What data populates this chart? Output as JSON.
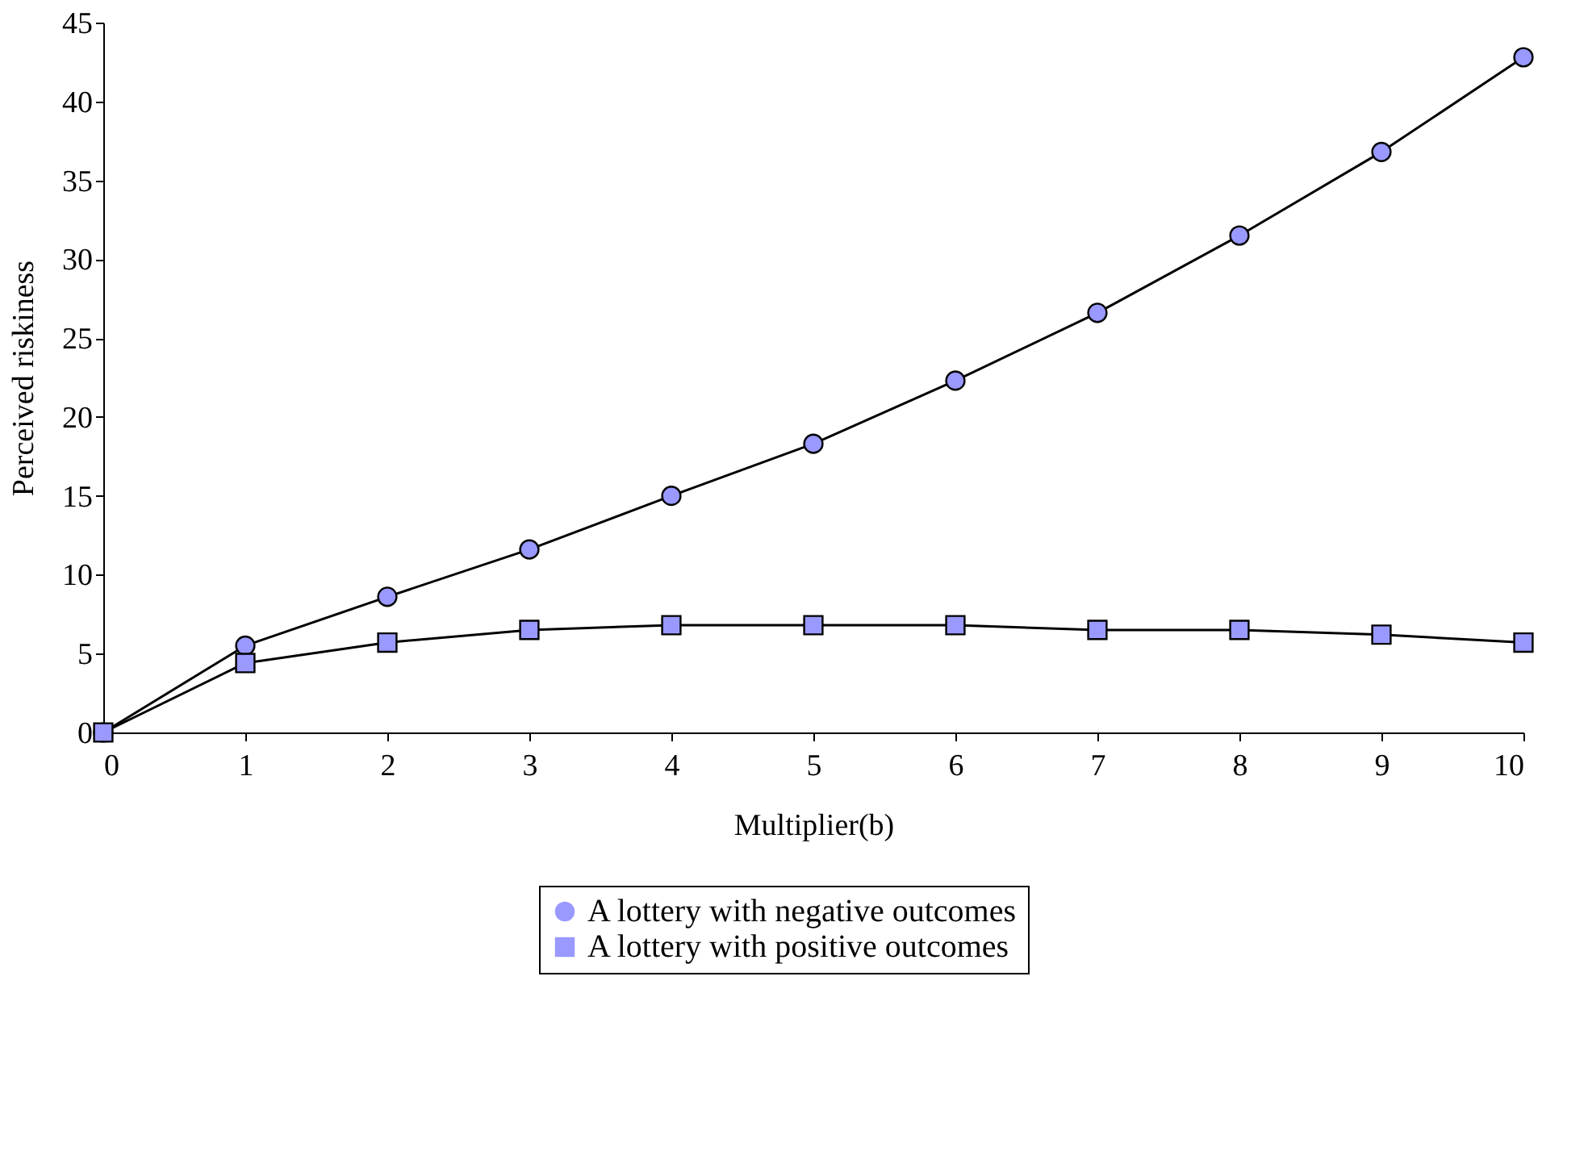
{
  "chart_data": {
    "type": "line",
    "xlabel": "Multiplier(b)",
    "ylabel": "Perceived riskiness",
    "x": [
      0,
      1,
      2,
      3,
      4,
      5,
      6,
      7,
      8,
      9,
      10
    ],
    "series": [
      {
        "name": "A lottery with negative outcomes",
        "color": "#9999ff",
        "marker": "circle",
        "values": [
          0,
          5.5,
          8.6,
          11.6,
          15.0,
          18.3,
          22.3,
          26.6,
          31.5,
          36.8,
          42.8
        ]
      },
      {
        "name": "A lottery with positive outcomes",
        "color": "#9999ff",
        "marker": "square",
        "values": [
          0,
          4.4,
          5.7,
          6.5,
          6.8,
          6.8,
          6.8,
          6.5,
          6.5,
          6.2,
          5.7
        ]
      }
    ],
    "xlim": [
      0,
      10
    ],
    "xticks": [
      0,
      1,
      2,
      3,
      4,
      5,
      6,
      7,
      8,
      9,
      10
    ],
    "ylim": [
      0,
      45
    ],
    "yticks": [
      0,
      5,
      10,
      15,
      20,
      25,
      30,
      35,
      40,
      45
    ],
    "grid": false,
    "legend": "bottom",
    "line_style": "solid"
  }
}
